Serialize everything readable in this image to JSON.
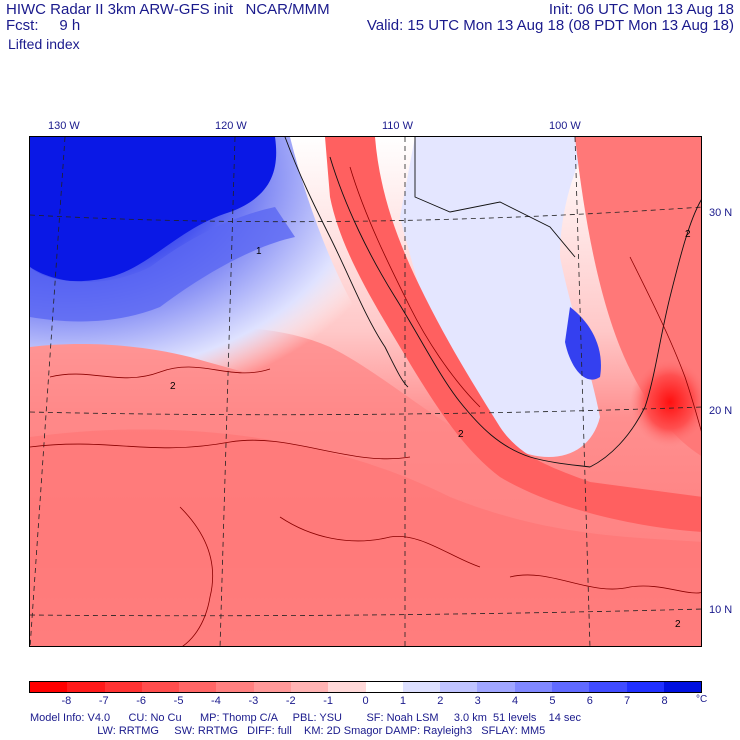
{
  "header": {
    "left_line1": "HIWC Radar II 3km ARW-GFS init   NCAR/MMM",
    "left_line2": "Fcst:     9 h",
    "left_line3": "Lifted index",
    "right_line1": "Init: 06 UTC Mon 13 Aug 18",
    "right_line2": "Valid: 15 UTC Mon 13 Aug 18 (08 PDT Mon 13 Aug 18)"
  },
  "map": {
    "longitude_labels": [
      "130 W",
      "120 W",
      "110 W",
      "100 W"
    ],
    "latitude_labels": [
      "30 N",
      "20 N",
      "10 N"
    ],
    "contour_labels": [
      "1",
      "2",
      "2",
      "2",
      "2"
    ]
  },
  "colorbar": {
    "unit": "°C",
    "ticks": [
      "-8",
      "-7",
      "-6",
      "-5",
      "-4",
      "-3",
      "-2",
      "-1",
      "0",
      "1",
      "2",
      "3",
      "4",
      "5",
      "6",
      "7",
      "8"
    ],
    "colors": [
      "#ff0000",
      "#ff1a1a",
      "#ff3333",
      "#ff4d4d",
      "#ff6666",
      "#ff8080",
      "#ff9999",
      "#ffb3b3",
      "#ffd9d9",
      "#ffffff",
      "#dde0ff",
      "#c0c4ff",
      "#a0a6ff",
      "#8088ff",
      "#606aff",
      "#404cff",
      "#2030ff",
      "#0010e0"
    ]
  },
  "footer": {
    "line1": "Model Info: V4.0      CU: No Cu      MP: Thomp C/A     PBL: YSU        SF: Noah LSM     3.0 km  51 levels    14 sec",
    "line2": "                      LW: RRTMG     SW: RRTMG   DIFF: full    KM: 2D Smagor DAMP: Rayleigh3   SFLAY: MM5"
  }
}
